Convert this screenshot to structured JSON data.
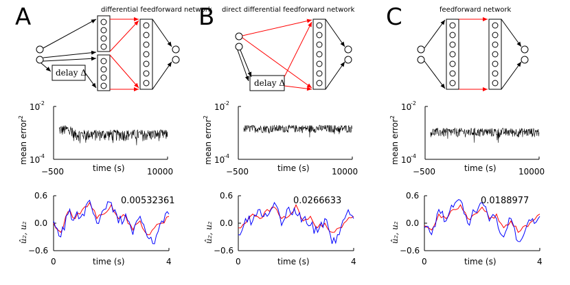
{
  "panels": [
    {
      "letter": "A",
      "network_title": "differential feedforward network",
      "delay_label": "delay Δ",
      "error_value": "0.00532361",
      "mse_level": 0.0009,
      "mse_spread": 0.0003
    },
    {
      "letter": "B",
      "network_title": "direct differential feedforward network",
      "delay_label": "delay Δ",
      "error_value": "0.0266633",
      "mse_level": 0.0015,
      "mse_spread": 0.00035
    },
    {
      "letter": "C",
      "network_title": "feedforward network",
      "delay_label": "",
      "error_value": "0.0188977",
      "mse_level": 0.0011,
      "mse_spread": 0.0003
    }
  ],
  "mse_axis": {
    "ylabel": "mean error",
    "ylabel_sup": "2",
    "y_top_base": "10",
    "y_top_exp": "-2",
    "y_bottom_base": "10",
    "y_bottom_exp": "-4",
    "x_min_label": "−500",
    "x_max_label": "10000",
    "xlabel": "time (s)"
  },
  "signal_axis": {
    "ylabel": "û₂, u₂",
    "y_ticks": [
      "0.6",
      "0.0",
      "−0.6"
    ],
    "x_min_label": "0",
    "x_max_label": "4",
    "xlabel": "time (s)"
  },
  "colors": {
    "target": "#ff0000",
    "output": "#0000ff",
    "arrow": "#000000",
    "red_arrow": "#ff0000"
  },
  "chart_data": [
    {
      "type": "line",
      "title": "A mean error²",
      "xlabel": "time (s)",
      "ylabel": "mean error²",
      "xlim": [
        -500,
        10000
      ],
      "ylim": [
        0.0001,
        0.01
      ],
      "yscale": "log",
      "series": [
        {
          "name": "mse",
          "level": 0.0009
        }
      ]
    },
    {
      "type": "line",
      "title": "B mean error²",
      "xlabel": "time (s)",
      "ylabel": "mean error²",
      "xlim": [
        -500,
        10000
      ],
      "ylim": [
        0.0001,
        0.01
      ],
      "yscale": "log",
      "series": [
        {
          "name": "mse",
          "level": 0.0015
        }
      ]
    },
    {
      "type": "line",
      "title": "C mean error²",
      "xlabel": "time (s)",
      "ylabel": "mean error²",
      "xlim": [
        -500,
        10000
      ],
      "ylim": [
        0.0001,
        0.01
      ],
      "yscale": "log",
      "series": [
        {
          "name": "mse",
          "level": 0.0011
        }
      ]
    },
    {
      "type": "line",
      "title": "0.00532361",
      "xlabel": "time (s)",
      "ylabel": "û₂, u₂",
      "xlim": [
        0,
        4
      ],
      "ylim": [
        -0.6,
        0.6
      ],
      "x": [
        0,
        0.25,
        0.5,
        0.75,
        1.0,
        1.25,
        1.5,
        1.75,
        2.0,
        2.25,
        2.5,
        2.75,
        3.0,
        3.25,
        3.5,
        3.75,
        4.0
      ],
      "series": [
        {
          "name": "target",
          "values": [
            0.0,
            -0.2,
            0.25,
            0.1,
            0.3,
            0.45,
            0.1,
            0.2,
            0.4,
            0.1,
            0.15,
            -0.15,
            0.05,
            -0.25,
            -0.1,
            0.0,
            0.15
          ]
        },
        {
          "name": "output",
          "values": [
            0.05,
            -0.3,
            0.2,
            0.15,
            0.2,
            0.5,
            0.0,
            0.3,
            0.45,
            0.0,
            0.2,
            -0.25,
            0.15,
            -0.3,
            -0.45,
            0.05,
            0.2
          ]
        }
      ]
    },
    {
      "type": "line",
      "title": "0.0266633",
      "xlabel": "time (s)",
      "ylabel": "û₂, u₂",
      "xlim": [
        0,
        4
      ],
      "ylim": [
        -0.6,
        0.6
      ],
      "x": [
        0,
        0.25,
        0.5,
        0.75,
        1.0,
        1.25,
        1.5,
        1.75,
        2.0,
        2.25,
        2.5,
        2.75,
        3.0,
        3.25,
        3.5,
        3.75,
        4.0
      ],
      "series": [
        {
          "name": "target",
          "values": [
            -0.1,
            0.0,
            0.2,
            0.1,
            0.3,
            0.35,
            0.1,
            0.15,
            0.4,
            0.05,
            0.15,
            -0.1,
            0.0,
            -0.2,
            -0.1,
            0.05,
            0.15
          ]
        },
        {
          "name": "output",
          "values": [
            -0.25,
            0.1,
            0.05,
            0.3,
            0.15,
            0.45,
            -0.05,
            0.35,
            0.2,
            0.1,
            -0.05,
            -0.2,
            0.1,
            -0.45,
            -0.25,
            0.2,
            0.1
          ]
        }
      ]
    },
    {
      "type": "line",
      "title": "0.0188977",
      "xlabel": "time (s)",
      "ylabel": "û₂, u₂",
      "xlim": [
        0,
        4
      ],
      "ylim": [
        -0.6,
        0.6
      ],
      "x": [
        0,
        0.25,
        0.5,
        0.75,
        1.0,
        1.25,
        1.5,
        1.75,
        2.0,
        2.25,
        2.5,
        2.75,
        3.0,
        3.25,
        3.5,
        3.75,
        4.0
      ],
      "series": [
        {
          "name": "target",
          "values": [
            -0.05,
            -0.15,
            0.2,
            0.1,
            0.3,
            0.4,
            0.1,
            0.2,
            0.35,
            0.1,
            0.2,
            -0.1,
            0.05,
            -0.2,
            -0.05,
            0.05,
            0.2
          ]
        },
        {
          "name": "output",
          "values": [
            -0.1,
            -0.25,
            0.3,
            0.05,
            0.35,
            0.5,
            0.0,
            0.25,
            0.45,
            0.05,
            0.1,
            -0.3,
            0.1,
            -0.4,
            -0.15,
            0.1,
            0.15
          ]
        }
      ]
    }
  ]
}
